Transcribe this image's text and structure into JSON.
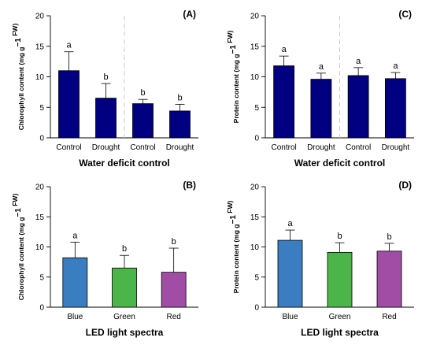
{
  "chart_data": [
    {
      "panel_label": "(A)",
      "type": "bar",
      "categories": [
        "Control",
        "Drought",
        "Control",
        "Drought"
      ],
      "values": [
        11.0,
        6.5,
        5.6,
        4.4
      ],
      "errors": [
        3.1,
        2.4,
        0.7,
        1.1
      ],
      "letters": [
        "a",
        "b",
        "b",
        "b"
      ],
      "ylim": [
        0,
        20
      ],
      "yticks": [
        0,
        5,
        10,
        15,
        20
      ],
      "xlabel": "Water deficit control",
      "ylabel_main": "Chlorophyll content (mg g",
      "ylabel_sup": "−1",
      "ylabel_end": "FW)",
      "bar_colors": [
        "#000080",
        "#000080",
        "#000080",
        "#000080"
      ],
      "divider": true
    },
    {
      "panel_label": "(C)",
      "type": "bar",
      "categories": [
        "Control",
        "Drought",
        "Control",
        "Drought"
      ],
      "values": [
        11.8,
        9.6,
        10.2,
        9.7
      ],
      "errors": [
        1.6,
        1.0,
        1.3,
        1.0
      ],
      "letters": [
        "a",
        "a",
        "a",
        "a"
      ],
      "ylim": [
        0,
        20
      ],
      "yticks": [
        0,
        5,
        10,
        15,
        20
      ],
      "xlabel": "Water deficit control",
      "ylabel_main": "Protein content (mg g",
      "ylabel_sup": "−1",
      "ylabel_end": "FW)",
      "bar_colors": [
        "#000080",
        "#000080",
        "#000080",
        "#000080"
      ],
      "divider": true
    },
    {
      "panel_label": "(B)",
      "type": "bar",
      "categories": [
        "Blue",
        "Green",
        "Red"
      ],
      "values": [
        8.2,
        6.5,
        5.8
      ],
      "errors": [
        2.6,
        2.1,
        4.0
      ],
      "letters": [
        "a",
        "b",
        "b"
      ],
      "ylim": [
        0,
        20
      ],
      "yticks": [
        0,
        5,
        10,
        15,
        20
      ],
      "xlabel": "LED light spectra",
      "ylabel_main": "Chlorophyll content (mg g",
      "ylabel_sup": "−1",
      "ylabel_end": "FW)",
      "bar_colors": [
        "#3A7DC0",
        "#4CB54A",
        "#A24DA5"
      ],
      "divider": false
    },
    {
      "panel_label": "(D)",
      "type": "bar",
      "categories": [
        "Blue",
        "Green",
        "Red"
      ],
      "values": [
        11.1,
        9.1,
        9.3
      ],
      "errors": [
        1.7,
        1.6,
        1.3
      ],
      "letters": [
        "a",
        "b",
        "b"
      ],
      "ylim": [
        0,
        20
      ],
      "yticks": [
        0,
        5,
        10,
        15,
        20
      ],
      "xlabel": "LED light spectra",
      "ylabel_main": "Protein content (mg g",
      "ylabel_sup": "−1",
      "ylabel_end": "FW)",
      "bar_colors": [
        "#3A7DC0",
        "#4CB54A",
        "#A24DA5"
      ],
      "divider": false
    }
  ]
}
